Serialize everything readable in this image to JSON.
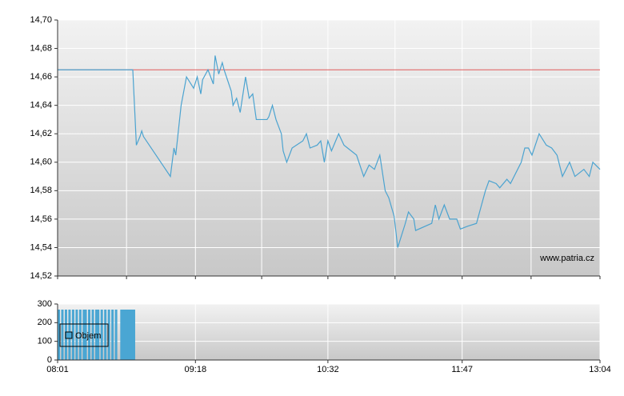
{
  "chart_data": [
    {
      "type": "line",
      "xlim": [
        "08:01",
        "13:04"
      ],
      "ylim": [
        14.52,
        14.7
      ],
      "yticks": [
        {
          "value": 14.52,
          "label": "14,52"
        },
        {
          "value": 14.54,
          "label": "14,54"
        },
        {
          "value": 14.56,
          "label": "14,56"
        },
        {
          "value": 14.58,
          "label": "14,58"
        },
        {
          "value": 14.6,
          "label": "14,60"
        },
        {
          "value": 14.62,
          "label": "14,62"
        },
        {
          "value": 14.64,
          "label": "14,64"
        },
        {
          "value": 14.66,
          "label": "14,66"
        },
        {
          "value": 14.68,
          "label": "14,68"
        },
        {
          "value": 14.7,
          "label": "14,70"
        }
      ],
      "grid": true,
      "reference_line": {
        "value": 14.665,
        "color": "#e05a5a"
      },
      "watermark": "www.patria.cz",
      "x": [
        "08:01",
        "08:43",
        "08:45",
        "08:47",
        "08:48",
        "08:49",
        "09:04",
        "09:06",
        "09:07",
        "09:10",
        "09:13",
        "09:17",
        "09:19",
        "09:21",
        "09:22",
        "09:25",
        "09:28",
        "09:29",
        "09:31",
        "09:33",
        "09:34",
        "09:38",
        "09:39",
        "09:41",
        "09:43",
        "09:46",
        "09:48",
        "09:50",
        "09:52",
        "09:58",
        "09:59",
        "10:01",
        "10:03",
        "10:06",
        "10:07",
        "10:09",
        "10:12",
        "10:18",
        "10:20",
        "10:22",
        "10:26",
        "10:28",
        "10:30",
        "10:32",
        "10:34",
        "10:38",
        "10:41",
        "10:48",
        "10:52",
        "10:55",
        "10:58",
        "11:01",
        "11:04",
        "11:06",
        "11:09",
        "11:11",
        "11:15",
        "11:17",
        "11:20",
        "11:21",
        "11:30",
        "11:32",
        "11:34",
        "11:37",
        "11:40",
        "11:44",
        "11:46",
        "11:50",
        "11:55",
        "12:00",
        "12:02",
        "12:06",
        "12:08",
        "12:12",
        "12:14",
        "12:20",
        "12:22",
        "12:24",
        "12:26",
        "12:30",
        "12:34",
        "12:37",
        "12:40",
        "12:43",
        "12:47",
        "12:50",
        "12:55",
        "12:58",
        "13:00",
        "13:04"
      ],
      "series": [
        {
          "color": "#4ba3d0",
          "values": [
            14.665,
            14.665,
            14.612,
            14.618,
            14.622,
            14.618,
            14.59,
            14.61,
            14.605,
            14.64,
            14.66,
            14.652,
            14.66,
            14.648,
            14.658,
            14.665,
            14.655,
            14.675,
            14.662,
            14.67,
            14.665,
            14.65,
            14.64,
            14.645,
            14.635,
            14.66,
            14.645,
            14.648,
            14.63,
            14.63,
            14.632,
            14.64,
            14.63,
            14.62,
            14.608,
            14.6,
            14.61,
            14.615,
            14.62,
            14.61,
            14.612,
            14.615,
            14.6,
            14.615,
            14.608,
            14.62,
            14.612,
            14.605,
            14.59,
            14.598,
            14.595,
            14.605,
            14.58,
            14.575,
            14.562,
            14.54,
            14.556,
            14.565,
            14.56,
            14.552,
            14.557,
            14.57,
            14.56,
            14.57,
            14.56,
            14.56,
            14.553,
            14.555,
            14.557,
            14.58,
            14.587,
            14.585,
            14.582,
            14.588,
            14.585,
            14.6,
            14.61,
            14.61,
            14.605,
            14.62,
            14.612,
            14.61,
            14.605,
            14.59,
            14.6,
            14.59,
            14.595,
            14.59,
            14.6,
            14.595
          ]
        }
      ]
    },
    {
      "type": "bar",
      "xlim": [
        "08:01",
        "13:04"
      ],
      "xticks": [
        "08:01",
        "09:18",
        "10:32",
        "11:47",
        "13:04"
      ],
      "ylim": [
        0,
        300
      ],
      "yticks": [
        0,
        100,
        200,
        300
      ],
      "grid": true,
      "x": [
        "08:01",
        "08:03",
        "08:05",
        "08:07",
        "08:09",
        "08:11",
        "08:13",
        "08:15",
        "08:16",
        "08:18",
        "08:20",
        "08:22",
        "08:23",
        "08:25",
        "08:27",
        "08:29",
        "08:31",
        "08:33",
        "08:36",
        "08:37",
        "08:38",
        "08:39",
        "08:40",
        "08:41",
        "08:42",
        "08:43"
      ],
      "series": [
        {
          "name": "Objem",
          "color": "#4aa6d3",
          "values": [
            270,
            270,
            270,
            270,
            270,
            270,
            270,
            270,
            270,
            270,
            270,
            270,
            270,
            270,
            270,
            270,
            270,
            270,
            270,
            270,
            270,
            270,
            270,
            270,
            270,
            270
          ]
        }
      ]
    }
  ]
}
